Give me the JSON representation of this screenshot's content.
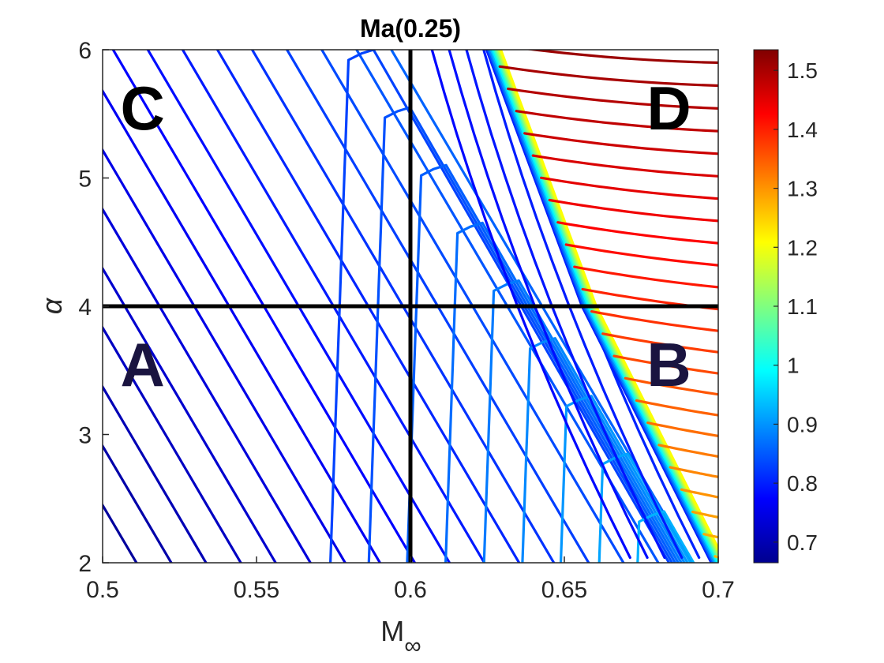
{
  "chart_data": {
    "type": "contour",
    "title": "Ma(0.25)",
    "xlabel": "M",
    "xlabel_subscript": "∞",
    "ylabel": "α",
    "xlim": [
      0.5,
      0.7
    ],
    "ylim": [
      2,
      6
    ],
    "x_ticks": [
      "0.5",
      "0.55",
      "0.6",
      "0.65",
      "0.7"
    ],
    "y_ticks": [
      "2",
      "3",
      "4",
      "5",
      "6"
    ],
    "colorbar": {
      "colormap": "jet",
      "range": [
        0.665,
        1.535
      ],
      "ticks": [
        "0.7",
        "0.8",
        "0.9",
        "1",
        "1.1",
        "1.2",
        "1.3",
        "1.4",
        "1.5"
      ]
    },
    "shock_line": [
      [
        0.627,
        6.0
      ],
      [
        0.658,
        4.0
      ],
      [
        0.7,
        2.0
      ]
    ],
    "divider_lines": {
      "x": 0.6,
      "y": 4
    },
    "regions": [
      {
        "label": "A",
        "x": 0.513,
        "y": 3.55,
        "color": "#1a1440"
      },
      {
        "label": "B",
        "x": 0.684,
        "y": 3.55,
        "color": "#1a1440"
      },
      {
        "label": "C",
        "x": 0.513,
        "y": 5.55,
        "color": "#000000"
      },
      {
        "label": "D",
        "x": 0.684,
        "y": 5.55,
        "color": "#000000"
      }
    ]
  }
}
